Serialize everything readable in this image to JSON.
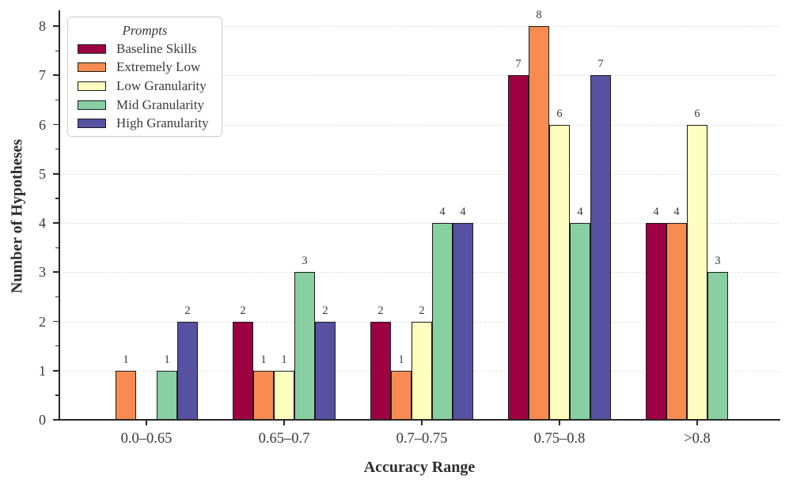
{
  "chart_data": {
    "type": "bar",
    "title": "",
    "xlabel": "Accuracy Range",
    "ylabel": "Number of Hypotheses",
    "legend_title": "Prompts",
    "legend_position": "upper-left",
    "categories": [
      "0.0–0.65",
      "0.65–0.7",
      "0.7–0.75",
      "0.75–0.8",
      ">0.8"
    ],
    "series": [
      {
        "name": "Baseline Skills",
        "color": "#9e0142",
        "values": [
          0,
          2,
          2,
          7,
          4
        ]
      },
      {
        "name": "Extremely Low",
        "color": "#f78b52",
        "values": [
          1,
          1,
          1,
          8,
          4
        ]
      },
      {
        "name": "Low Granularity",
        "color": "#feffbe",
        "values": [
          0,
          1,
          2,
          6,
          6
        ]
      },
      {
        "name": "Mid Granularity",
        "color": "#88cfa2",
        "values": [
          1,
          3,
          4,
          4,
          3
        ]
      },
      {
        "name": "High Granularity",
        "color": "#5751a1",
        "values": [
          2,
          2,
          4,
          7,
          0
        ]
      }
    ],
    "y_ticks": [
      0,
      1,
      2,
      3,
      4,
      5,
      6,
      7,
      8
    ],
    "ylim": [
      0,
      8.3
    ],
    "grid": "horizontal-dashed",
    "bar_edge_color": "#1c1c1c",
    "value_labels_shown_for_nonzero_bars": true
  }
}
